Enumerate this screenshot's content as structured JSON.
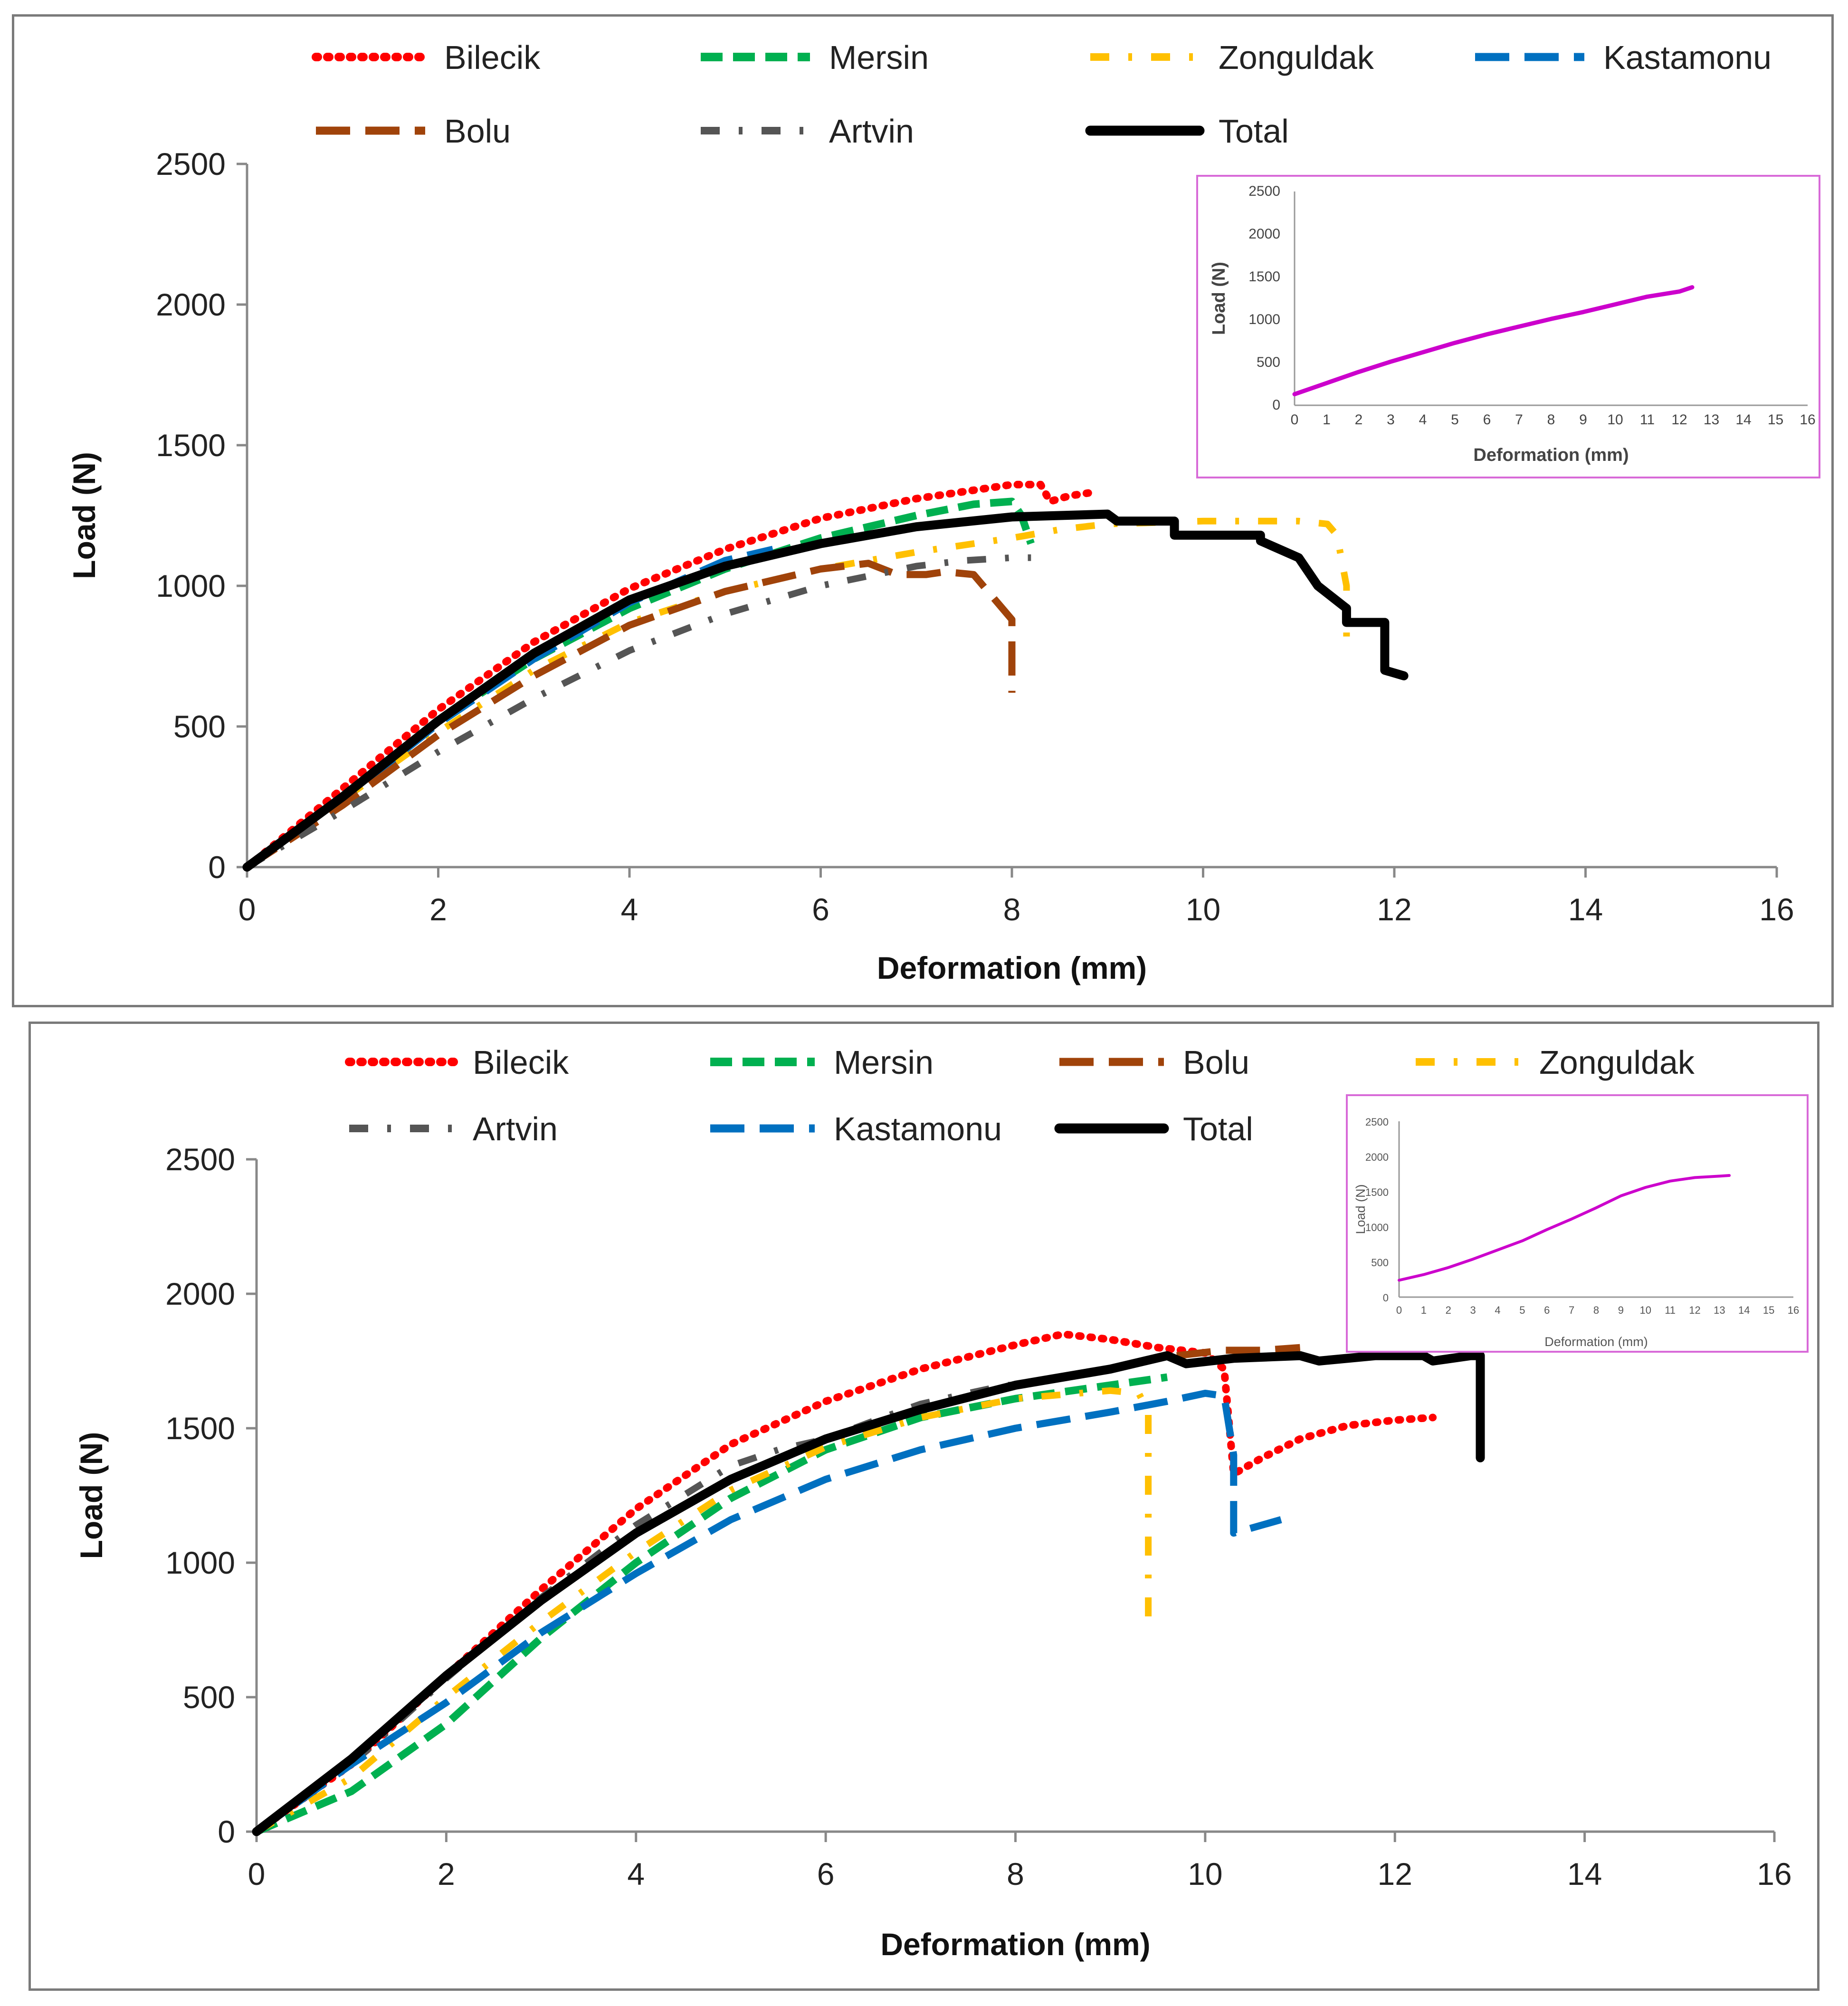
{
  "chart_data": [
    {
      "type": "line",
      "xlabel": "Deformation (mm)",
      "ylabel": "Load (N)",
      "xlim": [
        0,
        16
      ],
      "ylim": [
        0,
        2500
      ],
      "xticks": [
        "0",
        "2",
        "4",
        "6",
        "8",
        "10",
        "12",
        "14",
        "16"
      ],
      "yticks": [
        "0",
        "500",
        "1000",
        "1500",
        "2000",
        "2500"
      ],
      "legend": [
        "Bilecik",
        "Mersin",
        "Zonguldak",
        "Kastamonu",
        "Bolu",
        "Artvin",
        "Total"
      ],
      "series": [
        {
          "name": "Bilecik",
          "color": "#ff0000",
          "style": "dotted",
          "points": [
            [
              0,
              0
            ],
            [
              1,
              280
            ],
            [
              2,
              560
            ],
            [
              3,
              800
            ],
            [
              4,
              990
            ],
            [
              5,
              1130
            ],
            [
              6,
              1240
            ],
            [
              7,
              1310
            ],
            [
              8,
              1360
            ],
            [
              8.3,
              1360
            ],
            [
              8.4,
              1300
            ],
            [
              8.6,
              1320
            ],
            [
              8.8,
              1330
            ]
          ]
        },
        {
          "name": "Mersin",
          "color": "#00b050",
          "style": "dashed",
          "points": [
            [
              0,
              0
            ],
            [
              1,
              250
            ],
            [
              2,
              520
            ],
            [
              3,
              740
            ],
            [
              4,
              920
            ],
            [
              5,
              1060
            ],
            [
              6,
              1170
            ],
            [
              7,
              1250
            ],
            [
              7.6,
              1290
            ],
            [
              8.0,
              1300
            ],
            [
              8.1,
              1250
            ],
            [
              8.2,
              1150
            ]
          ]
        },
        {
          "name": "Zonguldak",
          "color": "#ffc000",
          "style": "dashdot",
          "points": [
            [
              0,
              0
            ],
            [
              2,
              480
            ],
            [
              3,
              700
            ],
            [
              4,
              870
            ],
            [
              5,
              980
            ],
            [
              6,
              1060
            ],
            [
              7,
              1120
            ],
            [
              8,
              1170
            ],
            [
              8.5,
              1200
            ],
            [
              9,
              1220
            ],
            [
              10,
              1230
            ],
            [
              11,
              1230
            ],
            [
              11.3,
              1220
            ],
            [
              11.4,
              1180
            ],
            [
              11.5,
              1000
            ],
            [
              11.5,
              820
            ]
          ]
        },
        {
          "name": "Kastamonu",
          "color": "#0070c0",
          "style": "longdash",
          "points": [
            [
              0,
              0
            ],
            [
              1,
              240
            ],
            [
              2,
              510
            ],
            [
              3,
              740
            ],
            [
              4,
              940
            ],
            [
              5,
              1090
            ],
            [
              5.5,
              1130
            ]
          ]
        },
        {
          "name": "Bolu",
          "color": "#a0430a",
          "style": "longdash",
          "points": [
            [
              0,
              0
            ],
            [
              1,
              220
            ],
            [
              2,
              470
            ],
            [
              3,
              680
            ],
            [
              4,
              860
            ],
            [
              5,
              980
            ],
            [
              6,
              1060
            ],
            [
              6.5,
              1080
            ],
            [
              6.8,
              1040
            ],
            [
              7.1,
              1040
            ],
            [
              7.3,
              1050
            ],
            [
              7.6,
              1040
            ],
            [
              7.8,
              960
            ],
            [
              8.0,
              880
            ],
            [
              8.0,
              620
            ]
          ]
        },
        {
          "name": "Artvin",
          "color": "#555555",
          "style": "dashdot",
          "points": [
            [
              0,
              0
            ],
            [
              1,
              200
            ],
            [
              2,
              410
            ],
            [
              3,
              600
            ],
            [
              4,
              770
            ],
            [
              5,
              900
            ],
            [
              6,
              1000
            ],
            [
              7,
              1070
            ],
            [
              7.5,
              1090
            ],
            [
              8,
              1100
            ],
            [
              8.2,
              1100
            ]
          ]
        },
        {
          "name": "Total",
          "color": "#000000",
          "style": "solid",
          "points": [
            [
              0,
              0
            ],
            [
              1,
              250
            ],
            [
              2,
              520
            ],
            [
              3,
              760
            ],
            [
              4,
              950
            ],
            [
              5,
              1070
            ],
            [
              6,
              1150
            ],
            [
              7,
              1210
            ],
            [
              8,
              1245
            ],
            [
              9,
              1255
            ],
            [
              9.1,
              1230
            ],
            [
              9.7,
              1230
            ],
            [
              9.7,
              1180
            ],
            [
              10.6,
              1180
            ],
            [
              10.6,
              1160
            ],
            [
              11.0,
              1100
            ],
            [
              11.2,
              1000
            ],
            [
              11.5,
              920
            ],
            [
              11.5,
              870
            ],
            [
              11.9,
              870
            ],
            [
              11.9,
              700
            ],
            [
              12.1,
              680
            ]
          ]
        }
      ],
      "inset": {
        "xlabel": "Deformation (mm)",
        "ylabel": "Load (N)",
        "xlim": [
          0,
          16
        ],
        "ylim": [
          0,
          2500
        ],
        "xticks": [
          "0",
          "1",
          "2",
          "3",
          "4",
          "5",
          "6",
          "7",
          "8",
          "9",
          "10",
          "11",
          "12",
          "13",
          "14",
          "15",
          "16"
        ],
        "yticks": [
          "0",
          "500",
          "1000",
          "1500",
          "2000",
          "2500"
        ],
        "series": [
          {
            "name": "inset",
            "color": "#cc00cc",
            "points": [
              [
                0,
                130
              ],
              [
                1,
                260
              ],
              [
                2,
                390
              ],
              [
                3,
                510
              ],
              [
                4,
                620
              ],
              [
                5,
                730
              ],
              [
                6,
                830
              ],
              [
                7,
                920
              ],
              [
                8,
                1010
              ],
              [
                9,
                1090
              ],
              [
                10,
                1180
              ],
              [
                11,
                1270
              ],
              [
                12,
                1330
              ],
              [
                12.4,
                1380
              ]
            ]
          }
        ]
      }
    },
    {
      "type": "line",
      "xlabel": "Deformation (mm)",
      "ylabel": "Load (N)",
      "xlim": [
        0,
        16
      ],
      "ylim": [
        0,
        2500
      ],
      "xticks": [
        "0",
        "2",
        "4",
        "6",
        "8",
        "10",
        "12",
        "14",
        "16"
      ],
      "yticks": [
        "0",
        "500",
        "1000",
        "1500",
        "2000",
        "2500"
      ],
      "legend": [
        "Bilecik",
        "Mersin",
        "Bolu",
        "Zonguldak",
        "Artvin",
        "Kastamonu",
        "Total"
      ],
      "series": [
        {
          "name": "Bilecik",
          "color": "#ff0000",
          "style": "dotted",
          "points": [
            [
              0,
              0
            ],
            [
              1,
              250
            ],
            [
              2,
              580
            ],
            [
              3,
              900
            ],
            [
              4,
              1200
            ],
            [
              5,
              1440
            ],
            [
              6,
              1600
            ],
            [
              7,
              1720
            ],
            [
              8,
              1810
            ],
            [
              8.5,
              1850
            ],
            [
              9,
              1830
            ],
            [
              9.5,
              1800
            ],
            [
              10.0,
              1780
            ],
            [
              10.2,
              1720
            ],
            [
              10.3,
              1330
            ],
            [
              10.6,
              1390
            ],
            [
              11,
              1460
            ],
            [
              11.5,
              1510
            ],
            [
              12,
              1530
            ],
            [
              12.4,
              1540
            ]
          ]
        },
        {
          "name": "Mersin",
          "color": "#00b050",
          "style": "dashed",
          "points": [
            [
              0,
              0
            ],
            [
              1,
              150
            ],
            [
              2,
              400
            ],
            [
              3,
              720
            ],
            [
              4,
              1000
            ],
            [
              5,
              1240
            ],
            [
              6,
              1420
            ],
            [
              7,
              1540
            ],
            [
              8,
              1610
            ],
            [
              9,
              1660
            ],
            [
              9.6,
              1690
            ]
          ]
        },
        {
          "name": "Bolu",
          "color": "#a0430a",
          "style": "longdash",
          "points": [
            [
              9.7,
              1770
            ],
            [
              10.2,
              1790
            ],
            [
              10.6,
              1790
            ],
            [
              11.0,
              1800
            ]
          ]
        },
        {
          "name": "Zonguldak",
          "color": "#ffc000",
          "style": "dashdot",
          "points": [
            [
              0,
              0
            ],
            [
              1,
              200
            ],
            [
              2,
              500
            ],
            [
              3,
              780
            ],
            [
              4,
              1040
            ],
            [
              5,
              1270
            ],
            [
              6,
              1430
            ],
            [
              7,
              1540
            ],
            [
              8,
              1610
            ],
            [
              9,
              1640
            ],
            [
              9.3,
              1630
            ],
            [
              9.4,
              1560
            ],
            [
              9.4,
              1200
            ],
            [
              9.4,
              800
            ]
          ]
        },
        {
          "name": "Artvin",
          "color": "#555555",
          "style": "dashdot",
          "points": [
            [
              0,
              0
            ],
            [
              1,
              250
            ],
            [
              2,
              570
            ],
            [
              3,
              870
            ],
            [
              4,
              1140
            ],
            [
              5,
              1360
            ],
            [
              5.5,
              1420
            ],
            [
              6,
              1460
            ],
            [
              6.6,
              1540
            ],
            [
              7,
              1590
            ],
            [
              7.5,
              1630
            ],
            [
              7.9,
              1660
            ],
            [
              8.1,
              1660
            ]
          ]
        },
        {
          "name": "Kastamonu",
          "color": "#0070c0",
          "style": "longdash",
          "points": [
            [
              0,
              0
            ],
            [
              1,
              250
            ],
            [
              2,
              480
            ],
            [
              3,
              740
            ],
            [
              4,
              960
            ],
            [
              5,
              1160
            ],
            [
              6,
              1310
            ],
            [
              7,
              1420
            ],
            [
              8,
              1500
            ],
            [
              9,
              1560
            ],
            [
              9.6,
              1600
            ],
            [
              10.0,
              1630
            ],
            [
              10.2,
              1620
            ],
            [
              10.3,
              1400
            ],
            [
              10.3,
              1110
            ],
            [
              10.8,
              1160
            ]
          ]
        },
        {
          "name": "Total",
          "color": "#000000",
          "style": "solid",
          "points": [
            [
              0,
              0
            ],
            [
              1,
              270
            ],
            [
              2,
              580
            ],
            [
              3,
              860
            ],
            [
              4,
              1110
            ],
            [
              5,
              1310
            ],
            [
              6,
              1460
            ],
            [
              7,
              1570
            ],
            [
              8,
              1660
            ],
            [
              9,
              1720
            ],
            [
              9.6,
              1770
            ],
            [
              9.8,
              1740
            ],
            [
              10.3,
              1760
            ],
            [
              11,
              1770
            ],
            [
              11.2,
              1750
            ],
            [
              11.8,
              1770
            ],
            [
              12.3,
              1770
            ],
            [
              12.4,
              1750
            ],
            [
              12.8,
              1770
            ],
            [
              12.9,
              1770
            ],
            [
              12.9,
              1390
            ]
          ]
        }
      ],
      "inset": {
        "xlabel": "Deformation (mm)",
        "ylabel": "Load (N)",
        "xlim": [
          0,
          16
        ],
        "ylim": [
          0,
          2500
        ],
        "xticks": [
          "0",
          "1",
          "2",
          "3",
          "4",
          "5",
          "6",
          "7",
          "8",
          "9",
          "10",
          "11",
          "12",
          "13",
          "14",
          "15",
          "16"
        ],
        "yticks": [
          "0",
          "500",
          "1000",
          "1500",
          "2000",
          "2500"
        ],
        "series": [
          {
            "name": "inset",
            "color": "#cc00cc",
            "points": [
              [
                0,
                240
              ],
              [
                1,
                320
              ],
              [
                2,
                420
              ],
              [
                3,
                540
              ],
              [
                4,
                670
              ],
              [
                5,
                800
              ],
              [
                6,
                960
              ],
              [
                7,
                1110
              ],
              [
                8,
                1270
              ],
              [
                9,
                1440
              ],
              [
                10,
                1560
              ],
              [
                11,
                1650
              ],
              [
                12,
                1700
              ],
              [
                13,
                1720
              ],
              [
                13.4,
                1730
              ]
            ]
          }
        ]
      }
    }
  ]
}
